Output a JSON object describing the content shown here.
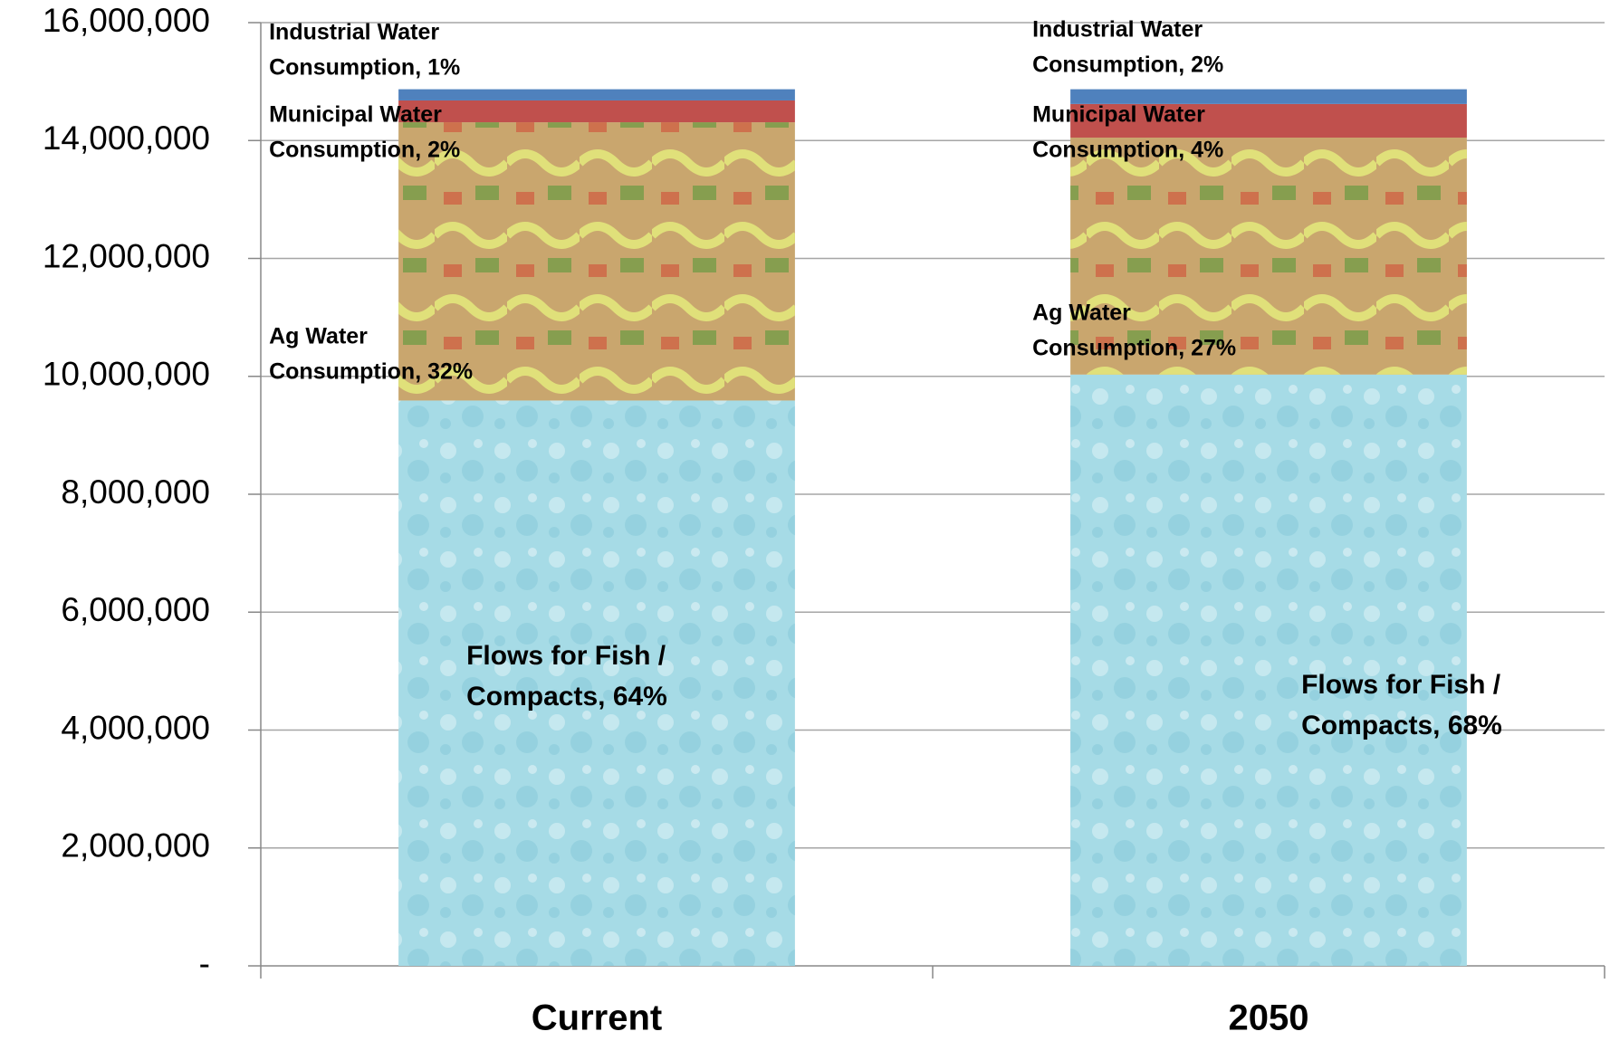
{
  "chart_data": {
    "type": "stacked_bar",
    "categories": [
      "Current",
      "2050"
    ],
    "series": [
      {
        "name": "Flows for Fish / Compacts",
        "color": "#a6dbe6",
        "values": [
          9590000,
          10030000
        ],
        "data_labels": [
          [
            "Flows for Fish /",
            "Compacts, 64%"
          ],
          [
            "Flows for Fish /",
            "Compacts, 68%"
          ]
        ]
      },
      {
        "name": "Ag Water Consumption",
        "color": "#c9a66e",
        "values": [
          4720000,
          4020000
        ],
        "data_labels": [
          [
            "Ag Water",
            "Consumption, 32%"
          ],
          [
            "Ag Water",
            "Consumption, 27%"
          ]
        ]
      },
      {
        "name": "Municipal Water Consumption",
        "color": "#c0504d",
        "values": [
          370000,
          570000
        ],
        "data_labels": [
          [
            "Municipal Water",
            "Consumption, 2%"
          ],
          [
            "Municipal Water",
            "Consumption, 4%"
          ]
        ]
      },
      {
        "name": "Industrial Water Consumption",
        "color": "#4f81bd",
        "values": [
          190000,
          250000
        ],
        "data_labels": [
          [
            "Industrial Water",
            "Consumption, 1%"
          ],
          [
            "Industrial Water",
            "Consumption, 2%"
          ]
        ]
      }
    ],
    "ylim": [
      0,
      16000000
    ],
    "yticks": [
      {
        "value": 0,
        "label": "-"
      },
      {
        "value": 2000000,
        "label": "2,000,000"
      },
      {
        "value": 4000000,
        "label": "4,000,000"
      },
      {
        "value": 6000000,
        "label": "6,000,000"
      },
      {
        "value": 8000000,
        "label": "8,000,000"
      },
      {
        "value": 10000000,
        "label": "10,000,000"
      },
      {
        "value": 12000000,
        "label": "12,000,000"
      },
      {
        "value": 14000000,
        "label": "14,000,000"
      },
      {
        "value": 16000000,
        "label": "16,000,000"
      }
    ],
    "grid": true
  }
}
